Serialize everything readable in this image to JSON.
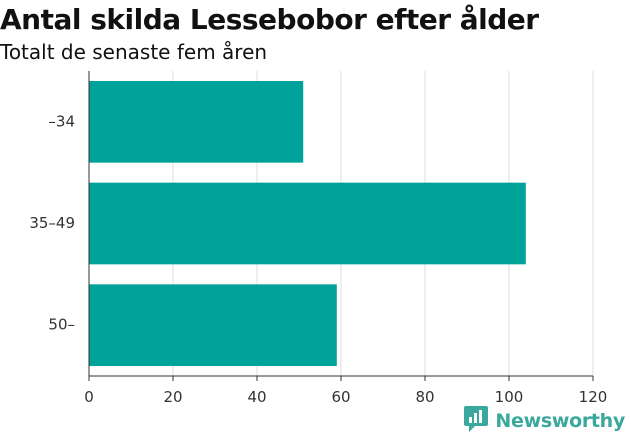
{
  "header": {
    "title": "Antal skilda Lessebobor efter ålder",
    "subtitle": "Totalt de senaste fem åren"
  },
  "brand": {
    "name": "Newsworthy",
    "icon": "newsworthy-logo-icon",
    "color": "#3aa89c"
  },
  "chart_data": {
    "type": "bar",
    "orientation": "horizontal",
    "title": "Antal skilda Lessebobor efter ålder",
    "subtitle": "Totalt de senaste fem åren",
    "categories": [
      "–34",
      "35–49",
      "50–"
    ],
    "values": [
      51,
      104,
      59
    ],
    "xlim": [
      0,
      120
    ],
    "xticks": [
      0,
      20,
      40,
      60,
      80,
      100,
      120
    ],
    "grid": true,
    "bar_color": "#00a39a",
    "grid_color": "#dddddd"
  }
}
